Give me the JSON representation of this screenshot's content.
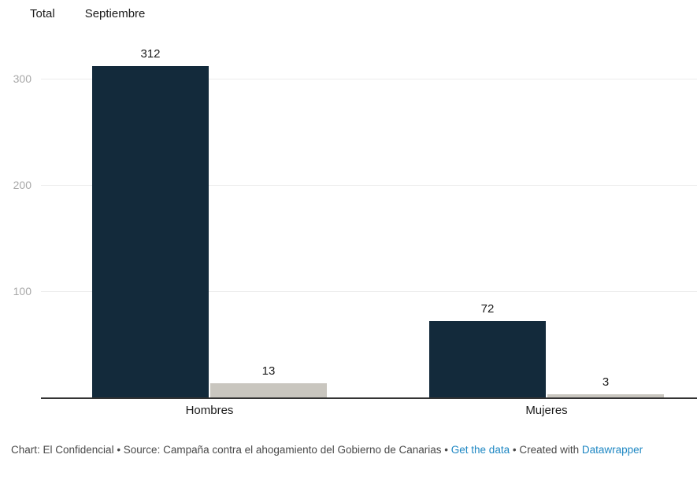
{
  "legend": {
    "items": [
      {
        "label": "Total"
      },
      {
        "label": "Septiembre"
      }
    ]
  },
  "chart_data": {
    "type": "bar",
    "categories": [
      "Hombres",
      "Mujeres"
    ],
    "series": [
      {
        "name": "Total",
        "values": [
          312,
          72
        ],
        "color": "#132a3b"
      },
      {
        "name": "Septiembre",
        "values": [
          13,
          3
        ],
        "color": "#c9c6bf"
      }
    ],
    "title": "",
    "xlabel": "",
    "ylabel": "",
    "ylim": [
      0,
      330
    ],
    "yticks": [
      100,
      200,
      300
    ],
    "grid": true,
    "legend_position": "top",
    "annotations": []
  },
  "colors": {
    "bar_total": "#132a3b",
    "bar_septiembre": "#c9c6bf",
    "gridline": "#ececec",
    "axis_tick_text": "#a8a8a8",
    "baseline": "#333333",
    "text": "#1a1a1a",
    "footer_text": "#494949",
    "link": "#1e87c3"
  },
  "footer": {
    "parts": [
      {
        "text": "Chart: El Confidencial • Source: Campaña contra el ahogamiento del Gobierno de Canarias • ",
        "link": false
      },
      {
        "text": "Get the data",
        "link": true,
        "name": "get-the-data-link"
      },
      {
        "text": " • Created with ",
        "link": false
      },
      {
        "text": "Datawrapper",
        "link": true,
        "name": "datawrapper-link"
      }
    ]
  }
}
